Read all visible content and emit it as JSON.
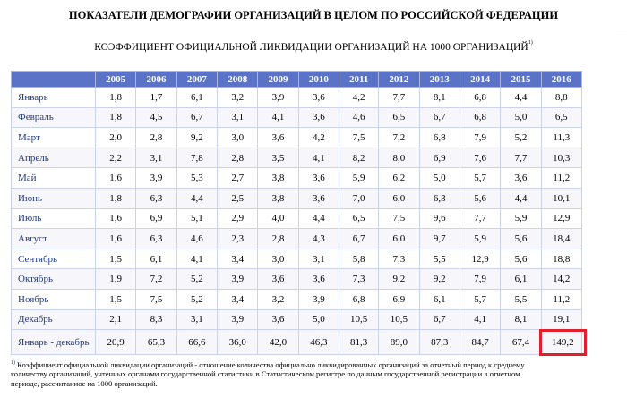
{
  "header": {
    "title": "ПОКАЗАТЕЛИ ДЕМОГРАФИИ ОРГАНИЗАЦИЙ В ЦЕЛОМ ПО РОССИЙСКОЙ ФЕДЕРАЦИИ",
    "subtitle": "КОЭФФИЦИЕНТ ОФИЦИАЛЬНОЙ ЛИКВИДАЦИИ ОРГАНИЗАЦИЙ НА 1000 ОРГАНИЗАЦИЙ",
    "subtitle_note": "1)"
  },
  "table": {
    "years": [
      "2005",
      "2006",
      "2007",
      "2008",
      "2009",
      "2010",
      "2011",
      "2012",
      "2013",
      "2014",
      "2015",
      "2016"
    ],
    "rows": [
      {
        "month": "Январь",
        "values": [
          "1,8",
          "1,7",
          "6,1",
          "3,2",
          "3,9",
          "3,6",
          "4,2",
          "7,7",
          "8,1",
          "6,8",
          "4,4",
          "8,8"
        ]
      },
      {
        "month": "Февраль",
        "values": [
          "1,8",
          "4,5",
          "6,7",
          "3,1",
          "4,1",
          "3,6",
          "4,6",
          "6,5",
          "6,7",
          "6,8",
          "5,0",
          "6,5"
        ]
      },
      {
        "month": "Март",
        "values": [
          "2,0",
          "2,8",
          "9,2",
          "3,0",
          "3,6",
          "4,2",
          "7,5",
          "7,2",
          "6,8",
          "7,9",
          "5,2",
          "11,3"
        ]
      },
      {
        "month": "Апрель",
        "values": [
          "2,2",
          "3,1",
          "7,8",
          "2,8",
          "3,5",
          "4,1",
          "8,2",
          "8,0",
          "6,9",
          "7,6",
          "7,7",
          "10,3"
        ]
      },
      {
        "month": "Май",
        "values": [
          "1,6",
          "3,9",
          "5,3",
          "2,7",
          "3,8",
          "3,6",
          "5,9",
          "6,2",
          "5,0",
          "5,7",
          "3,6",
          "11,2"
        ]
      },
      {
        "month": "Июнь",
        "values": [
          "1,8",
          "6,3",
          "4,4",
          "2,5",
          "3,8",
          "3,6",
          "7,0",
          "6,0",
          "6,3",
          "5,6",
          "4,4",
          "10,1"
        ]
      },
      {
        "month": "Июль",
        "values": [
          "1,6",
          "6,9",
          "5,1",
          "2,9",
          "4,0",
          "4,4",
          "6,5",
          "7,5",
          "9,6",
          "7,7",
          "5,9",
          "12,9"
        ]
      },
      {
        "month": "Август",
        "values": [
          "1,6",
          "6,3",
          "4,6",
          "2,3",
          "2,8",
          "4,3",
          "6,7",
          "6,0",
          "9,7",
          "5,9",
          "5,6",
          "18,4"
        ]
      },
      {
        "month": "Сентябрь",
        "values": [
          "1,5",
          "6,1",
          "4,1",
          "3,4",
          "3,0",
          "3,1",
          "5,8",
          "7,3",
          "5,5",
          "12,9",
          "5,6",
          "18,8"
        ]
      },
      {
        "month": "Октябрь",
        "values": [
          "1,9",
          "7,2",
          "5,2",
          "3,9",
          "3,6",
          "3,6",
          "7,3",
          "9,2",
          "9,2",
          "7,9",
          "6,1",
          "14,2"
        ]
      },
      {
        "month": "Ноябрь",
        "values": [
          "1,5",
          "7,5",
          "5,2",
          "3,4",
          "3,2",
          "3,9",
          "6,8",
          "6,9",
          "6,1",
          "5,7",
          "5,5",
          "11,2"
        ]
      },
      {
        "month": "Декабрь",
        "values": [
          "2,1",
          "8,3",
          "3,1",
          "3,9",
          "3,6",
          "5,0",
          "10,5",
          "10,5",
          "6,7",
          "4,1",
          "8,1",
          "19,1"
        ]
      }
    ],
    "total": {
      "label": "Январь - декабрь",
      "values": [
        "20,9",
        "65,3",
        "66,6",
        "36,0",
        "42,0",
        "46,3",
        "81,3",
        "89,0",
        "87,3",
        "84,7",
        "67,4",
        "149,2"
      ]
    }
  },
  "footnote": {
    "marker": "1)",
    "text": "Коэффициент официальной ликвидации организаций - отношение количества официально ликвидированных организаций за отчетный период к среднему количеству организаций, учтенных органами государственной статистики в Статистическом регистре по данным государственной регистрации в отчетном периоде, рассчитанное на 1000 организаций."
  },
  "colors": {
    "header_bg": "#5b73c6",
    "highlight_border": "#e0202a",
    "month_text": "#1f3a84"
  }
}
